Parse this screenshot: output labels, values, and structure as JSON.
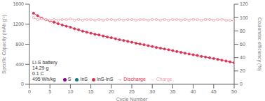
{
  "chart_data": {
    "type": "line",
    "xlabel": "Cycle Number",
    "ylabel": "Specific Capacity (mAh g⁻¹)",
    "y2label": "Coulombic efficiency (%)",
    "x": [
      1,
      2,
      3,
      4,
      5,
      6,
      7,
      8,
      9,
      10,
      11,
      12,
      13,
      14,
      15,
      16,
      17,
      18,
      19,
      20,
      21,
      22,
      23,
      24,
      25,
      26,
      27,
      28,
      29,
      30,
      31,
      32,
      33,
      34,
      35,
      36,
      37,
      38,
      39,
      40,
      41,
      42,
      43,
      44,
      45,
      46,
      47,
      48,
      49,
      50
    ],
    "series": [
      {
        "name": "→ Discharge",
        "color": "#e03050",
        "marker": "filled_circle",
        "values": [
          1420,
          1370,
          1320,
          1290,
          1265,
          1240,
          1210,
          1185,
          1160,
          1140,
          1110,
          1090,
          1060,
          1040,
          1020,
          1000,
          985,
          965,
          945,
          930,
          910,
          890,
          875,
          858,
          840,
          820,
          805,
          790,
          772,
          755,
          735,
          720,
          705,
          690,
          672,
          655,
          638,
          620,
          605,
          590,
          575,
          558,
          545,
          530,
          515,
          498,
          480,
          465,
          448,
          430
        ]
      },
      {
        "name": "→ Charge",
        "color": "#f0a0b0",
        "marker": "open_circle",
        "axis": "y2",
        "values": [
          100,
          97,
          98,
          97,
          96,
          97,
          96,
          97,
          97,
          98,
          96,
          97,
          96,
          97,
          97,
          96,
          97,
          96,
          97,
          97,
          96,
          97,
          96,
          97,
          97,
          96,
          97,
          97,
          96,
          97,
          97,
          96,
          97,
          96,
          97,
          97,
          96,
          97,
          96,
          97,
          97,
          96,
          97,
          97,
          96,
          97,
          97,
          96,
          96,
          95
        ]
      }
    ],
    "xlim": [
      0,
      50
    ],
    "xticks": [
      0,
      5,
      10,
      15,
      20,
      25,
      30,
      35,
      40,
      45,
      50
    ],
    "ylim": [
      0,
      1600
    ],
    "yticks": [
      0,
      400,
      800,
      1200,
      1600
    ],
    "y2lim": [
      0,
      120
    ],
    "y2ticks": [
      0,
      20,
      40,
      60,
      80,
      100,
      120
    ],
    "grid": false,
    "annotations": [
      {
        "text": "Li-S battery\n14.29 g\n0.1 C\n495 Wh/kg"
      },
      {
        "text": "S",
        "color": "#8B008B"
      },
      {
        "text": "InS",
        "color": "#008080"
      },
      {
        "text": "InS-InS",
        "color": "#e03050"
      }
    ]
  }
}
